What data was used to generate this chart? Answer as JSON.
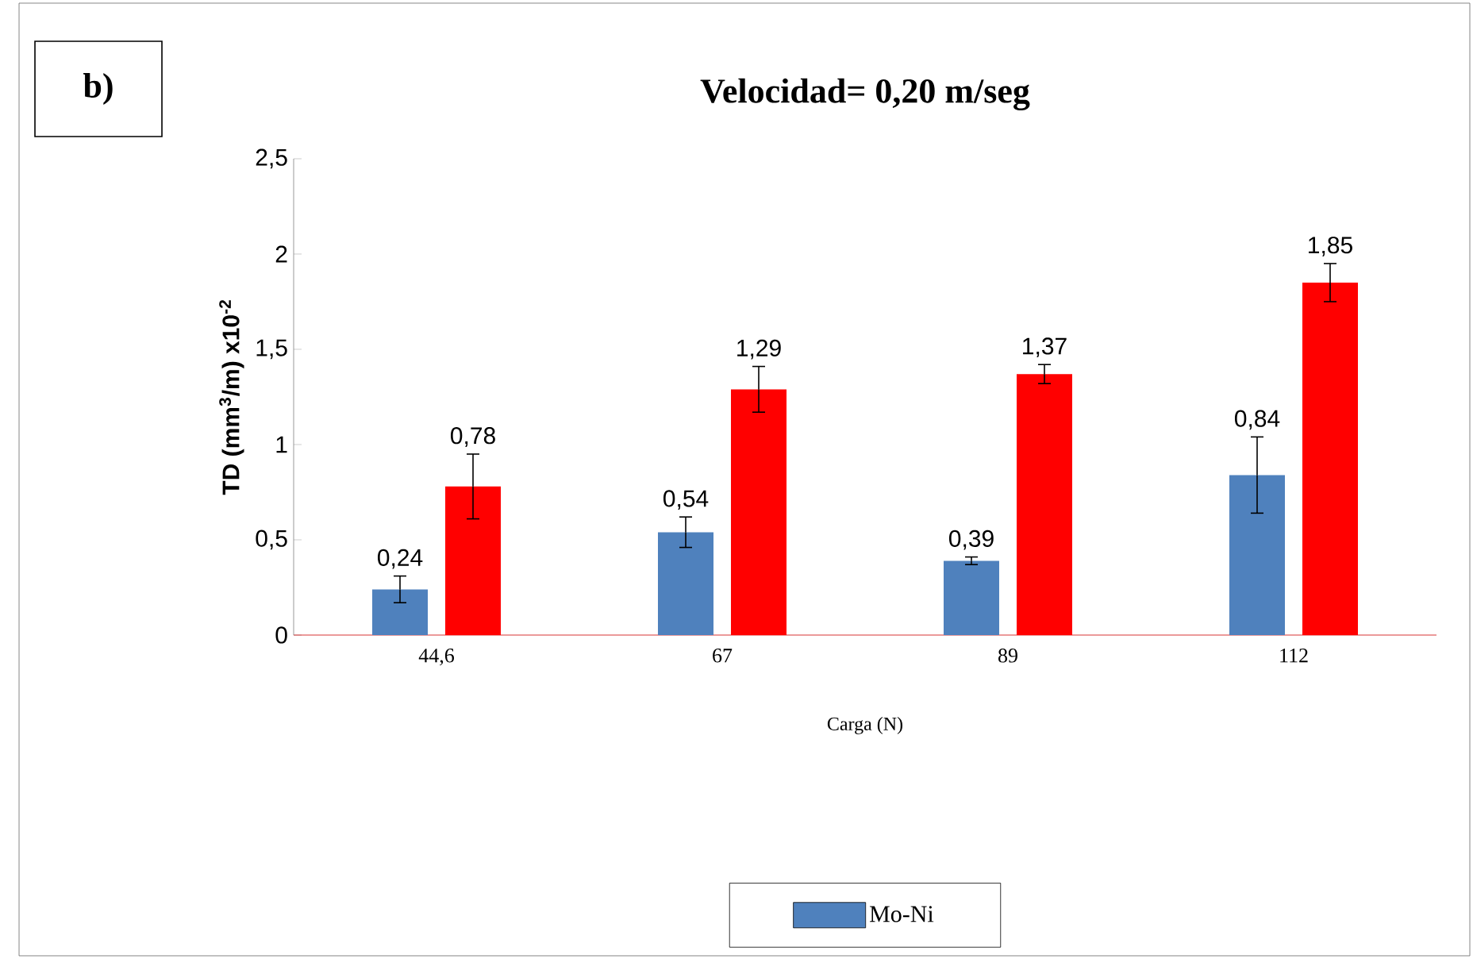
{
  "chart_data": {
    "type": "bar",
    "title": "Velocidad= 0,20 m/seg",
    "xlabel": "Carga  (N)",
    "ylabel": "TD (mm$^{3}$/m) x10$^{-2}$",
    "annotations": [
      "b)"
    ],
    "categories": [
      "44,6",
      "67",
      "89",
      "112"
    ],
    "series": [
      {
        "name": "Mo-Ni",
        "color": "#4f81bd",
        "values": [
          0.24,
          0.54,
          0.39,
          0.84
        ],
        "errors": [
          0.07,
          0.08,
          0.02,
          0.2
        ],
        "value_labels": [
          "0,24",
          "0,54",
          "0,39",
          "0,84"
        ]
      },
      {
        "color": "#ff0000",
        "values": [
          0.78,
          1.29,
          1.37,
          1.85
        ],
        "errors": [
          0.17,
          0.12,
          0.05,
          0.1
        ],
        "value_labels": [
          "0,78",
          "1,29",
          "1,37",
          "1,85"
        ]
      }
    ],
    "ylim": [
      0,
      2.5
    ],
    "yticks": [
      {
        "value": 0,
        "label": "0"
      },
      {
        "value": 0.5,
        "label": "0,5"
      },
      {
        "value": 1,
        "label": "1"
      },
      {
        "value": 1.5,
        "label": "1,5"
      },
      {
        "value": 2,
        "label": "2"
      },
      {
        "value": 2.5,
        "label": "2,5"
      }
    ],
    "legend": "bottom",
    "grid": false
  }
}
